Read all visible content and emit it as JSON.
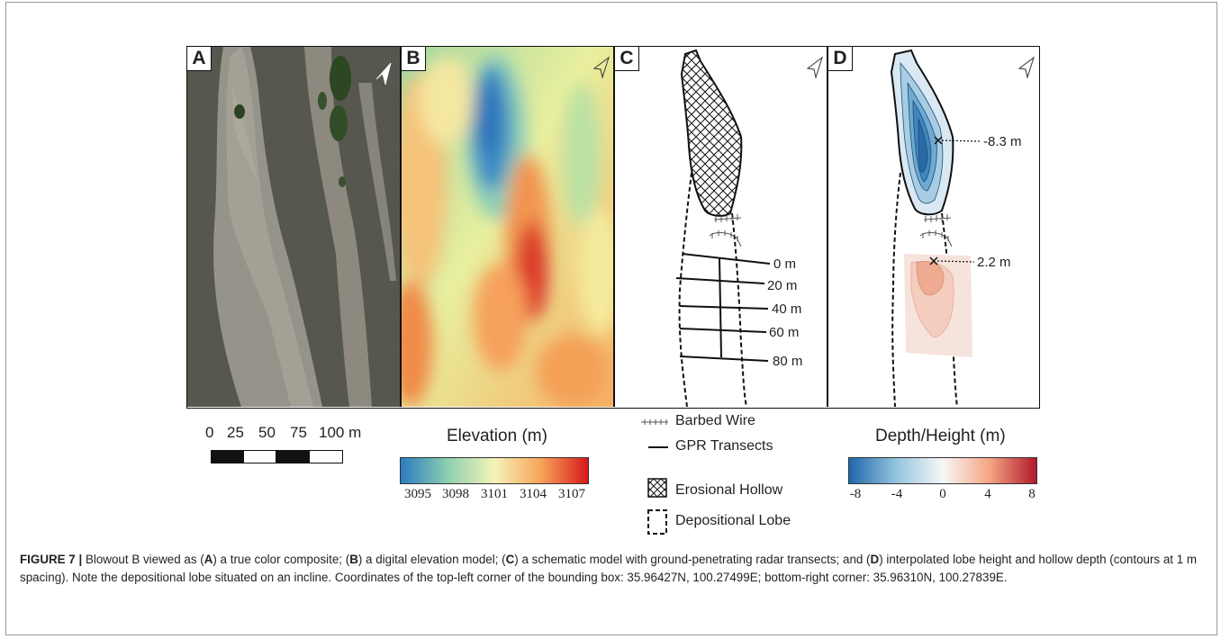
{
  "panels": {
    "a_label": "A",
    "b_label": "B",
    "c_label": "C",
    "d_label": "D"
  },
  "transects": [
    "0 m",
    "20 m",
    "40 m",
    "60 m",
    "80 m"
  ],
  "annotations": {
    "depth_max": "-8.3 m",
    "height_max": "2.2 m"
  },
  "scale_bar": {
    "labels": [
      "0",
      "25",
      "50",
      "75",
      "100 m"
    ]
  },
  "elevation_legend": {
    "title": "Elevation (m)",
    "ticks": [
      "3095",
      "3098",
      "3101",
      "3104",
      "3107"
    ],
    "colors": [
      "#2b7bc0",
      "#8dcfb0",
      "#f4f3b8",
      "#f8a35a",
      "#d7191c"
    ]
  },
  "schematic_legend": {
    "barbed_wire": "Barbed Wire",
    "gpr": "GPR Transects",
    "hollow": "Erosional Hollow",
    "lobe": "Depositional Lobe"
  },
  "depth_legend": {
    "title": "Depth/Height (m)",
    "ticks": [
      "-8",
      "-4",
      "0",
      "4",
      "8"
    ],
    "colors": [
      "#2166ac",
      "#92c5de",
      "#f7f7f7",
      "#f4a582",
      "#b2182b"
    ]
  },
  "caption": {
    "label": "FIGURE 7 |",
    "t1": " Blowout B viewed as (",
    "a": "A",
    "t2": ") a true color composite; (",
    "b": "B",
    "t3": ") a digital elevation model; (",
    "c": "C",
    "t4": ") a schematic model with ground-penetrating radar transects; and (",
    "d": "D",
    "t5": ") interpolated lobe height and hollow depth (contours at 1 m spacing). Note the depositional lobe situated on an incline. Coordinates of the top-left corner of the bounding box: 35.96427N, 100.27499E; bottom-right corner: 35.96310N, 100.27839E."
  }
}
